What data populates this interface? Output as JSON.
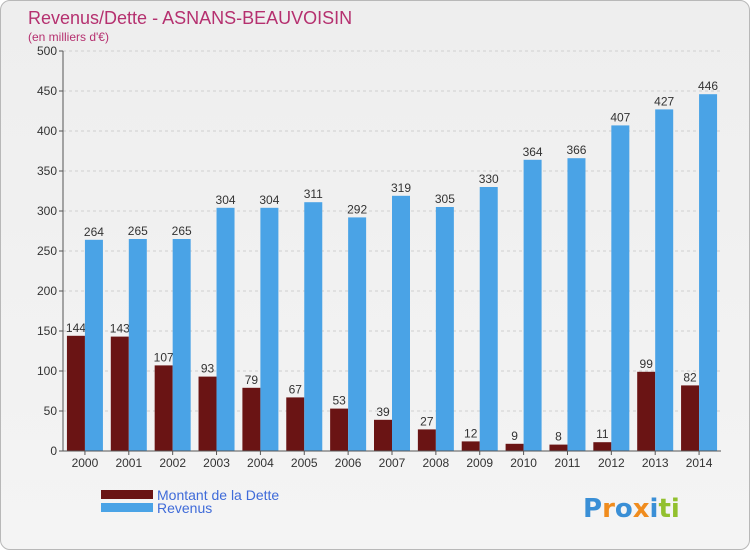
{
  "title": "Revenus/Dette - ASNANS-BEAUVOISIN",
  "subtitle": "(en milliers d'€)",
  "logo": [
    "P",
    "r",
    "o",
    "x",
    "i",
    "t",
    "i"
  ],
  "colors": {
    "dette": "#6a1414",
    "revenus": "#4aa3e6",
    "logo": [
      "#3a8fd6",
      "#f08c1e",
      "#3a8fd6",
      "#f08c1e",
      "#3a8fd6",
      "#92c02e",
      "#92c02e"
    ]
  },
  "chart_data": {
    "type": "bar",
    "title": "Revenus/Dette - ASNANS-BEAUVOISIN",
    "subtitle": "(en milliers d'€)",
    "categories": [
      "2000",
      "2001",
      "2002",
      "2003",
      "2004",
      "2005",
      "2006",
      "2007",
      "2008",
      "2009",
      "2010",
      "2011",
      "2012",
      "2013",
      "2014"
    ],
    "series": [
      {
        "name": "Montant de la Dette",
        "values": [
          144,
          143,
          107,
          93,
          79,
          67,
          53,
          39,
          27,
          12,
          9,
          8,
          11,
          99,
          82
        ]
      },
      {
        "name": "Revenus",
        "values": [
          264,
          265,
          265,
          304,
          304,
          311,
          292,
          319,
          305,
          330,
          364,
          366,
          407,
          427,
          446
        ]
      }
    ],
    "ylim": [
      0,
      500
    ],
    "yticks": [
      "0",
      "50",
      "100",
      "150",
      "200",
      "250",
      "300",
      "350",
      "400",
      "450",
      "500"
    ],
    "grid": true,
    "legend_position": "bottom-left"
  }
}
